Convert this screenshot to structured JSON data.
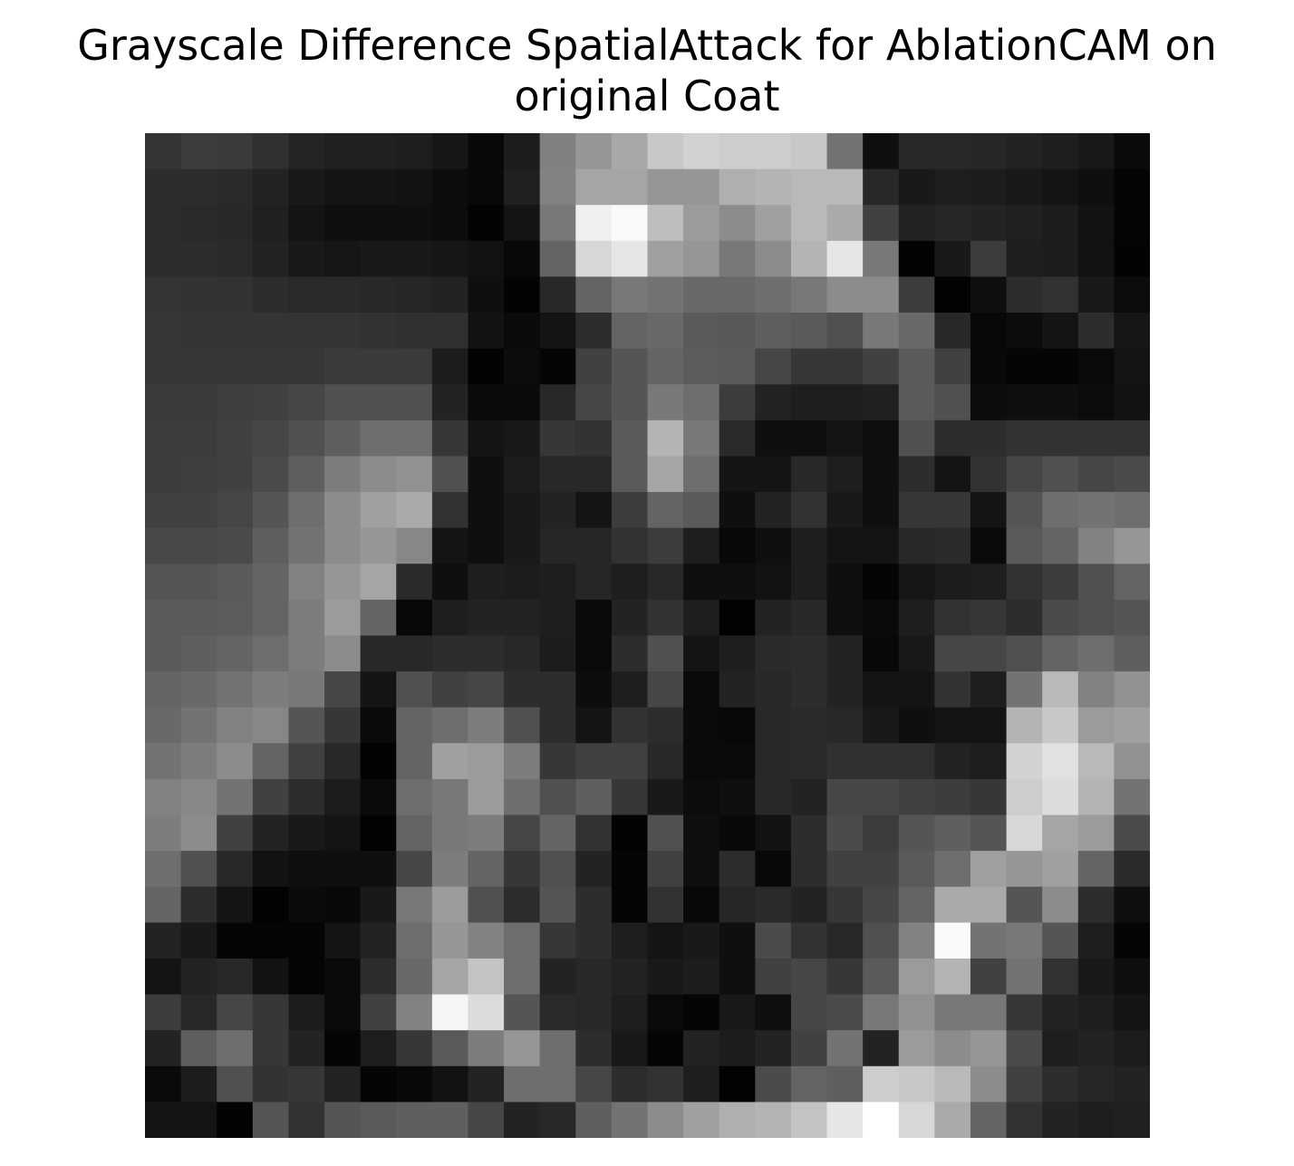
{
  "chart_data": {
    "type": "heatmap",
    "title": "Grayscale Difference SpatialAttack for AblationCAM on original Coat",
    "title_lines": [
      "Grayscale Difference SpatialAttack for AblationCAM on",
      "original Coat"
    ],
    "colormap": "gray",
    "value_range": [
      0,
      255
    ],
    "axes": "off",
    "rows": 28,
    "cols": 28,
    "values": [
      [
        52,
        60,
        58,
        48,
        36,
        32,
        32,
        30,
        22,
        8,
        28,
        128,
        150,
        168,
        200,
        210,
        205,
        205,
        200,
        115,
        15,
        40,
        40,
        38,
        35,
        30,
        25,
        10
      ],
      [
        45,
        45,
        42,
        35,
        25,
        20,
        20,
        18,
        12,
        8,
        32,
        130,
        165,
        165,
        150,
        150,
        175,
        180,
        185,
        185,
        40,
        25,
        30,
        28,
        25,
        20,
        15,
        5
      ],
      [
        45,
        42,
        40,
        32,
        20,
        15,
        15,
        15,
        12,
        3,
        20,
        120,
        240,
        250,
        190,
        155,
        140,
        160,
        185,
        170,
        65,
        35,
        38,
        35,
        32,
        28,
        18,
        5
      ],
      [
        45,
        45,
        42,
        35,
        25,
        22,
        25,
        25,
        22,
        18,
        8,
        100,
        215,
        230,
        160,
        150,
        120,
        140,
        180,
        230,
        120,
        3,
        25,
        60,
        30,
        28,
        18,
        3
      ],
      [
        52,
        50,
        50,
        45,
        42,
        42,
        40,
        38,
        35,
        15,
        3,
        40,
        100,
        120,
        115,
        105,
        105,
        110,
        120,
        140,
        140,
        60,
        3,
        15,
        45,
        50,
        25,
        12
      ],
      [
        55,
        52,
        52,
        52,
        52,
        52,
        50,
        48,
        48,
        18,
        10,
        20,
        45,
        100,
        105,
        90,
        88,
        95,
        90,
        80,
        120,
        105,
        40,
        8,
        12,
        20,
        45,
        22
      ],
      [
        55,
        55,
        55,
        55,
        55,
        58,
        58,
        58,
        28,
        3,
        12,
        5,
        65,
        85,
        100,
        92,
        90,
        70,
        55,
        55,
        65,
        90,
        65,
        8,
        5,
        5,
        10,
        20
      ],
      [
        58,
        58,
        62,
        65,
        70,
        80,
        80,
        80,
        35,
        10,
        10,
        40,
        70,
        85,
        120,
        110,
        60,
        35,
        30,
        30,
        32,
        90,
        80,
        12,
        15,
        15,
        12,
        18
      ],
      [
        60,
        60,
        65,
        70,
        80,
        95,
        110,
        110,
        55,
        20,
        25,
        55,
        50,
        90,
        180,
        120,
        42,
        15,
        15,
        20,
        15,
        80,
        45,
        45,
        50,
        50,
        50,
        50
      ],
      [
        60,
        62,
        65,
        75,
        95,
        125,
        140,
        145,
        80,
        15,
        28,
        40,
        40,
        90,
        165,
        110,
        20,
        20,
        40,
        30,
        15,
        45,
        20,
        50,
        70,
        80,
        70,
        75
      ],
      [
        65,
        65,
        70,
        85,
        110,
        140,
        160,
        170,
        50,
        15,
        25,
        35,
        20,
        60,
        100,
        90,
        15,
        35,
        50,
        25,
        15,
        55,
        55,
        20,
        85,
        110,
        115,
        110
      ],
      [
        72,
        72,
        75,
        95,
        115,
        140,
        150,
        135,
        20,
        15,
        25,
        38,
        38,
        50,
        60,
        30,
        8,
        15,
        30,
        20,
        20,
        40,
        42,
        10,
        90,
        100,
        130,
        150
      ],
      [
        85,
        85,
        90,
        100,
        130,
        150,
        165,
        42,
        15,
        30,
        28,
        30,
        38,
        30,
        40,
        15,
        15,
        18,
        30,
        15,
        5,
        22,
        28,
        30,
        50,
        60,
        80,
        100
      ],
      [
        90,
        90,
        92,
        100,
        125,
        155,
        100,
        8,
        30,
        35,
        35,
        30,
        10,
        35,
        50,
        30,
        2,
        35,
        40,
        15,
        10,
        30,
        50,
        55,
        45,
        75,
        80,
        85
      ],
      [
        90,
        95,
        100,
        110,
        125,
        140,
        40,
        40,
        45,
        45,
        40,
        28,
        10,
        45,
        80,
        20,
        30,
        42,
        45,
        35,
        8,
        25,
        70,
        70,
        80,
        100,
        110,
        95
      ],
      [
        100,
        105,
        115,
        125,
        120,
        70,
        20,
        80,
        65,
        70,
        45,
        45,
        12,
        30,
        70,
        10,
        35,
        40,
        45,
        35,
        20,
        20,
        50,
        30,
        115,
        185,
        130,
        145
      ],
      [
        105,
        115,
        130,
        135,
        85,
        55,
        10,
        100,
        110,
        125,
        80,
        45,
        20,
        50,
        45,
        10,
        8,
        40,
        42,
        40,
        25,
        15,
        20,
        20,
        180,
        200,
        155,
        160
      ],
      [
        115,
        125,
        140,
        100,
        65,
        40,
        2,
        100,
        160,
        155,
        125,
        55,
        65,
        65,
        40,
        10,
        10,
        40,
        42,
        48,
        48,
        48,
        35,
        30,
        210,
        225,
        185,
        145
      ],
      [
        130,
        135,
        115,
        65,
        45,
        28,
        10,
        110,
        120,
        155,
        110,
        80,
        95,
        55,
        25,
        12,
        15,
        40,
        35,
        70,
        70,
        65,
        60,
        55,
        205,
        220,
        180,
        115
      ],
      [
        125,
        140,
        65,
        35,
        25,
        20,
        2,
        100,
        120,
        125,
        70,
        100,
        50,
        2,
        80,
        15,
        8,
        18,
        45,
        75,
        60,
        85,
        95,
        85,
        215,
        165,
        155,
        75
      ],
      [
        110,
        80,
        40,
        18,
        15,
        15,
        15,
        70,
        125,
        100,
        55,
        80,
        35,
        5,
        65,
        15,
        45,
        8,
        45,
        65,
        65,
        90,
        110,
        160,
        150,
        160,
        100,
        42
      ],
      [
        100,
        45,
        20,
        2,
        10,
        8,
        25,
        120,
        155,
        80,
        45,
        85,
        45,
        5,
        50,
        8,
        38,
        42,
        35,
        55,
        70,
        100,
        170,
        170,
        85,
        140,
        45,
        15
      ],
      [
        35,
        25,
        5,
        5,
        5,
        20,
        35,
        110,
        150,
        130,
        110,
        55,
        45,
        30,
        20,
        25,
        15,
        75,
        50,
        40,
        80,
        130,
        250,
        115,
        120,
        85,
        30,
        5
      ],
      [
        20,
        35,
        40,
        18,
        5,
        10,
        45,
        105,
        165,
        195,
        110,
        35,
        40,
        35,
        25,
        28,
        15,
        65,
        70,
        55,
        90,
        155,
        180,
        65,
        115,
        50,
        25,
        15
      ],
      [
        60,
        40,
        70,
        55,
        28,
        10,
        65,
        130,
        245,
        220,
        85,
        42,
        40,
        30,
        10,
        5,
        25,
        15,
        70,
        75,
        120,
        145,
        120,
        120,
        55,
        35,
        30,
        20
      ],
      [
        35,
        95,
        110,
        55,
        35,
        5,
        30,
        55,
        90,
        125,
        150,
        110,
        45,
        25,
        5,
        35,
        28,
        35,
        65,
        115,
        35,
        155,
        140,
        150,
        75,
        30,
        35,
        28
      ],
      [
        10,
        28,
        80,
        50,
        55,
        35,
        5,
        8,
        18,
        35,
        110,
        110,
        70,
        45,
        50,
        30,
        2,
        75,
        100,
        95,
        205,
        200,
        185,
        140,
        65,
        45,
        38,
        35
      ],
      [
        20,
        20,
        2,
        85,
        50,
        85,
        90,
        95,
        95,
        70,
        35,
        40,
        95,
        115,
        140,
        160,
        175,
        180,
        195,
        230,
        255,
        215,
        170,
        100,
        50,
        35,
        30,
        32
      ]
    ]
  }
}
